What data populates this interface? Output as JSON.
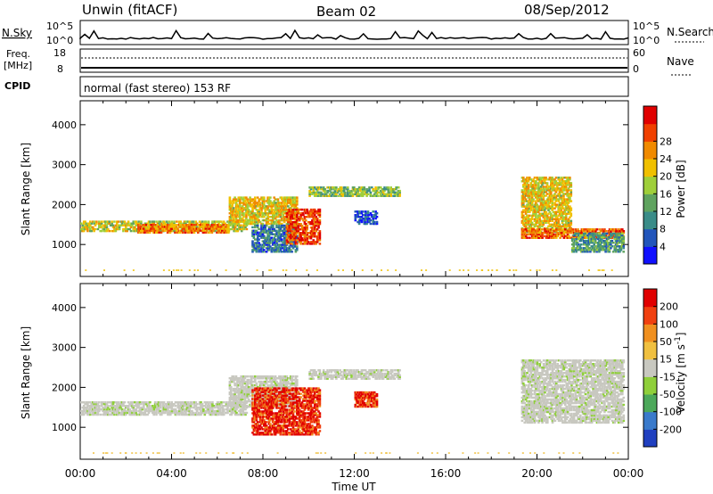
{
  "header": {
    "station": "Unwin (fitACF)",
    "beam": "Beam 02",
    "date": "08/Sep/2012"
  },
  "strip_panels": {
    "nsky": {
      "label": "N.Sky",
      "ticks_left": [
        "10^5",
        "10^0"
      ],
      "ticks_right": [
        "10^5",
        "10^0"
      ],
      "right_label": "N.Search"
    },
    "freq": {
      "label_line1": "Freq.",
      "label_line2": "[MHz]",
      "ticks_left": [
        "18",
        "8"
      ],
      "ticks_right": [
        "60",
        "0"
      ],
      "right_label": "Nave"
    },
    "cpid": {
      "label": "CPID",
      "text": "normal (fast stereo) 153 RF"
    }
  },
  "chart_data": [
    {
      "type": "heatmap",
      "panel": "power",
      "ylabel": "Slant Range [km]",
      "ylim": [
        200,
        4600
      ],
      "yticks": [
        "1000",
        "2000",
        "3000",
        "4000"
      ],
      "xlim_hours": [
        0,
        24
      ],
      "colorbar": {
        "label": "Power [dB]",
        "ticks": [
          "4",
          "8",
          "12",
          "16",
          "20",
          "24",
          "28"
        ],
        "colors": [
          "#1010ff",
          "#2255bb",
          "#3a8c88",
          "#5fa35f",
          "#9fcf3a",
          "#f0c000",
          "#f08a00",
          "#f04000",
          "#e00000"
        ]
      },
      "bands": [
        {
          "hours": [
            0.0,
            7.3
          ],
          "range": [
            1320,
            1600
          ],
          "level": 0.55
        },
        {
          "hours": [
            2.5,
            6.5
          ],
          "range": [
            1280,
            1520
          ],
          "level": 0.75
        },
        {
          "hours": [
            6.5,
            9.5
          ],
          "range": [
            1500,
            2200
          ],
          "level": 0.6
        },
        {
          "hours": [
            7.5,
            9.5
          ],
          "range": [
            800,
            1500
          ],
          "level": 0.25
        },
        {
          "hours": [
            9.0,
            10.5
          ],
          "range": [
            1000,
            1900
          ],
          "level": 0.85
        },
        {
          "hours": [
            10.0,
            14.0
          ],
          "range": [
            2200,
            2450
          ],
          "level": 0.45
        },
        {
          "hours": [
            12.0,
            13.0
          ],
          "range": [
            1500,
            1850
          ],
          "level": 0.15
        },
        {
          "hours": [
            19.3,
            21.5
          ],
          "range": [
            1300,
            2700
          ],
          "level": 0.6
        },
        {
          "hours": [
            19.3,
            23.8
          ],
          "range": [
            1150,
            1400
          ],
          "level": 0.8
        },
        {
          "hours": [
            21.5,
            23.8
          ],
          "range": [
            800,
            1300
          ],
          "level": 0.35
        }
      ]
    },
    {
      "type": "heatmap",
      "panel": "velocity",
      "ylabel": "Slant Range [km]",
      "ylim": [
        200,
        4600
      ],
      "yticks": [
        "1000",
        "2000",
        "3000",
        "4000"
      ],
      "xlim_hours": [
        0,
        24
      ],
      "colorbar": {
        "label": "Velocity [m s-1]",
        "ticks": [
          "200",
          "100",
          "50",
          "15",
          "-15",
          "-50",
          "-100",
          "-200"
        ],
        "colors": [
          "#2040c0",
          "#3a7acb",
          "#4ca85a",
          "#8fcf3a",
          "#c8c8c0",
          "#f0c040",
          "#f09020",
          "#f04010",
          "#e00000"
        ]
      },
      "bands": [
        {
          "hours": [
            0.0,
            7.3
          ],
          "range": [
            1300,
            1650
          ],
          "vel": "gray"
        },
        {
          "hours": [
            6.5,
            9.5
          ],
          "range": [
            1500,
            2300
          ],
          "vel": "gray"
        },
        {
          "hours": [
            7.5,
            10.5
          ],
          "range": [
            800,
            2000
          ],
          "vel": "red"
        },
        {
          "hours": [
            12.0,
            13.0
          ],
          "range": [
            1500,
            1900
          ],
          "vel": "red"
        },
        {
          "hours": [
            10.0,
            14.0
          ],
          "range": [
            2200,
            2450
          ],
          "vel": "gray"
        },
        {
          "hours": [
            19.3,
            23.8
          ],
          "range": [
            1100,
            2700
          ],
          "vel": "gray"
        }
      ]
    }
  ],
  "x_axis": {
    "ticks": [
      "00:00",
      "04:00",
      "08:00",
      "12:00",
      "16:00",
      "20:00",
      "00:00"
    ],
    "label": "Time UT"
  }
}
